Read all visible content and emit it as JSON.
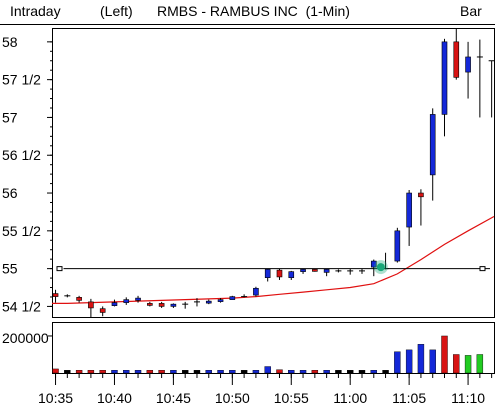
{
  "header": {
    "interval": "Intraday",
    "axis_side": "(Left)",
    "title": "RMBS - RAMBUS INC  (1-Min)",
    "chart_style": "Bar"
  },
  "colors": {
    "up": "#1428d8",
    "down": "#d81414",
    "neutral": "#000000",
    "moving_average": "#e01010",
    "volume_last": "#22cc22",
    "marker": "#18a878",
    "reference_line": "#000000"
  },
  "chart_data": [
    {
      "type": "candlestick",
      "title": "RMBS - RAMBUS INC  (1-Min)",
      "price_axis": {
        "ticks": [
          54.5,
          55,
          55.5,
          56,
          56.5,
          57,
          57.5,
          58
        ],
        "tick_labels": [
          "54 1/2",
          "55",
          "55 1/2",
          "56",
          "56 1/2",
          "57",
          "57 1/2",
          "58"
        ],
        "range": [
          54.36,
          58.17
        ]
      },
      "time_axis": {
        "tick_labels": [
          "10:35",
          "10:40",
          "10:45",
          "10:50",
          "10:55",
          "11:00",
          "11:05",
          "11:10"
        ],
        "tick_minutes": [
          635,
          640,
          645,
          650,
          655,
          660,
          665,
          670
        ],
        "range_minutes": [
          634.7,
          672.2
        ]
      },
      "reference_line": 55.0,
      "marker_point": {
        "t": 662.6,
        "price": 55.02
      },
      "candles": [
        {
          "t": 635,
          "o": 54.67,
          "h": 54.72,
          "l": 54.55,
          "c": 54.63,
          "dir": "down"
        },
        {
          "t": 636,
          "o": 54.64,
          "h": 54.66,
          "l": 54.62,
          "c": 54.64,
          "dir": "flat"
        },
        {
          "t": 637,
          "o": 54.62,
          "h": 54.64,
          "l": 54.55,
          "c": 54.58,
          "dir": "down"
        },
        {
          "t": 638,
          "o": 54.56,
          "h": 54.6,
          "l": 54.36,
          "c": 54.48,
          "dir": "down"
        },
        {
          "t": 639,
          "o": 54.47,
          "h": 54.5,
          "l": 54.37,
          "c": 54.42,
          "dir": "down"
        },
        {
          "t": 640,
          "o": 54.51,
          "h": 54.59,
          "l": 54.5,
          "c": 54.55,
          "dir": "up"
        },
        {
          "t": 641,
          "o": 54.55,
          "h": 54.62,
          "l": 54.52,
          "c": 54.59,
          "dir": "up"
        },
        {
          "t": 642,
          "o": 54.58,
          "h": 54.64,
          "l": 54.55,
          "c": 54.61,
          "dir": "up"
        },
        {
          "t": 643,
          "o": 54.54,
          "h": 54.56,
          "l": 54.5,
          "c": 54.52,
          "dir": "down"
        },
        {
          "t": 644,
          "o": 54.54,
          "h": 54.56,
          "l": 54.48,
          "c": 54.5,
          "dir": "down"
        },
        {
          "t": 645,
          "o": 54.5,
          "h": 54.54,
          "l": 54.48,
          "c": 54.53,
          "dir": "up"
        },
        {
          "t": 646,
          "o": 54.53,
          "h": 54.56,
          "l": 54.47,
          "c": 54.53,
          "dir": "flat"
        },
        {
          "t": 647,
          "o": 54.56,
          "h": 54.61,
          "l": 54.5,
          "c": 54.56,
          "dir": "flat"
        },
        {
          "t": 648,
          "o": 54.55,
          "h": 54.59,
          "l": 54.53,
          "c": 54.57,
          "dir": "up"
        },
        {
          "t": 649,
          "o": 54.57,
          "h": 54.61,
          "l": 54.55,
          "c": 54.59,
          "dir": "up"
        },
        {
          "t": 650,
          "o": 54.59,
          "h": 54.64,
          "l": 54.59,
          "c": 54.63,
          "dir": "up"
        },
        {
          "t": 651,
          "o": 54.63,
          "h": 54.66,
          "l": 54.62,
          "c": 54.63,
          "dir": "flat"
        },
        {
          "t": 652,
          "o": 54.65,
          "h": 54.76,
          "l": 54.63,
          "c": 54.74,
          "dir": "up"
        },
        {
          "t": 653,
          "o": 54.88,
          "h": 55.0,
          "l": 54.83,
          "c": 54.99,
          "dir": "up"
        },
        {
          "t": 654,
          "o": 54.98,
          "h": 55.0,
          "l": 54.85,
          "c": 54.89,
          "dir": "down"
        },
        {
          "t": 655,
          "o": 54.88,
          "h": 54.97,
          "l": 54.85,
          "c": 54.96,
          "dir": "up"
        },
        {
          "t": 656,
          "o": 54.96,
          "h": 55.0,
          "l": 54.93,
          "c": 54.99,
          "dir": "up"
        },
        {
          "t": 657,
          "o": 54.99,
          "h": 55.0,
          "l": 54.96,
          "c": 54.97,
          "dir": "down"
        },
        {
          "t": 658,
          "o": 54.95,
          "h": 55.0,
          "l": 54.9,
          "c": 54.99,
          "dir": "up"
        },
        {
          "t": 659,
          "o": 54.97,
          "h": 54.99,
          "l": 54.95,
          "c": 54.97,
          "dir": "flat"
        },
        {
          "t": 660,
          "o": 54.97,
          "h": 55.0,
          "l": 54.92,
          "c": 54.97,
          "dir": "flat"
        },
        {
          "t": 661,
          "o": 54.97,
          "h": 55.0,
          "l": 54.93,
          "c": 54.97,
          "dir": "flat"
        },
        {
          "t": 662,
          "o": 55.02,
          "h": 55.12,
          "l": 54.9,
          "c": 55.1,
          "dir": "up"
        },
        {
          "t": 663,
          "o": 55.0,
          "h": 55.21,
          "l": 54.99,
          "c": 55.0,
          "dir": "flat"
        },
        {
          "t": 664,
          "o": 55.1,
          "h": 55.54,
          "l": 55.08,
          "c": 55.5,
          "dir": "up"
        },
        {
          "t": 665,
          "o": 55.55,
          "h": 56.04,
          "l": 55.3,
          "c": 56.0,
          "dir": "up"
        },
        {
          "t": 666,
          "o": 56.0,
          "h": 56.05,
          "l": 55.57,
          "c": 55.95,
          "dir": "down"
        },
        {
          "t": 667,
          "o": 56.24,
          "h": 57.12,
          "l": 55.9,
          "c": 57.04,
          "dir": "up"
        },
        {
          "t": 668,
          "o": 57.04,
          "h": 58.04,
          "l": 56.75,
          "c": 58.0,
          "dir": "up"
        },
        {
          "t": 669,
          "o": 58.0,
          "h": 58.17,
          "l": 57.5,
          "c": 57.53,
          "dir": "down"
        },
        {
          "t": 670,
          "o": 57.6,
          "h": 58.0,
          "l": 57.25,
          "c": 57.8,
          "dir": "up"
        },
        {
          "t": 671,
          "o": 57.8,
          "h": 58.03,
          "l": 57.0,
          "c": 57.8,
          "dir": "flat"
        },
        {
          "t": 672,
          "o": 57.75,
          "h": 57.75,
          "l": 57.0,
          "c": 57.75,
          "dir": "flat"
        }
      ],
      "moving_average": [
        [
          634.7,
          54.54
        ],
        [
          636,
          54.54
        ],
        [
          638,
          54.55
        ],
        [
          640,
          54.56
        ],
        [
          642,
          54.57
        ],
        [
          644,
          54.58
        ],
        [
          646,
          54.59
        ],
        [
          648,
          54.6
        ],
        [
          650,
          54.61
        ],
        [
          652,
          54.63
        ],
        [
          654,
          54.66
        ],
        [
          656,
          54.69
        ],
        [
          658,
          54.72
        ],
        [
          660,
          54.75
        ],
        [
          662,
          54.8
        ],
        [
          664,
          54.93
        ],
        [
          666,
          55.12
        ],
        [
          668,
          55.32
        ],
        [
          670,
          55.5
        ],
        [
          672.2,
          55.69
        ]
      ]
    },
    {
      "type": "bar",
      "title": "Volume",
      "y_ticks": [
        200000
      ],
      "y_tick_labels": [
        "200000"
      ],
      "ylim": [
        0,
        270000
      ],
      "bars": [
        {
          "t": 635,
          "v": 22000,
          "dir": "down"
        },
        {
          "t": 636,
          "v": 15000,
          "dir": "flat"
        },
        {
          "t": 637,
          "v": 15000,
          "dir": "down"
        },
        {
          "t": 638,
          "v": 15000,
          "dir": "down"
        },
        {
          "t": 639,
          "v": 15000,
          "dir": "down"
        },
        {
          "t": 640,
          "v": 15000,
          "dir": "up"
        },
        {
          "t": 641,
          "v": 15000,
          "dir": "up"
        },
        {
          "t": 642,
          "v": 15000,
          "dir": "up"
        },
        {
          "t": 643,
          "v": 15000,
          "dir": "down"
        },
        {
          "t": 644,
          "v": 15000,
          "dir": "down"
        },
        {
          "t": 645,
          "v": 15000,
          "dir": "up"
        },
        {
          "t": 646,
          "v": 15000,
          "dir": "flat"
        },
        {
          "t": 647,
          "v": 15000,
          "dir": "flat"
        },
        {
          "t": 648,
          "v": 15000,
          "dir": "up"
        },
        {
          "t": 649,
          "v": 15000,
          "dir": "up"
        },
        {
          "t": 650,
          "v": 15000,
          "dir": "up"
        },
        {
          "t": 651,
          "v": 15000,
          "dir": "flat"
        },
        {
          "t": 652,
          "v": 15000,
          "dir": "up"
        },
        {
          "t": 653,
          "v": 35000,
          "dir": "up"
        },
        {
          "t": 654,
          "v": 18000,
          "dir": "down"
        },
        {
          "t": 655,
          "v": 15000,
          "dir": "up"
        },
        {
          "t": 656,
          "v": 15000,
          "dir": "up"
        },
        {
          "t": 657,
          "v": 15000,
          "dir": "down"
        },
        {
          "t": 658,
          "v": 15000,
          "dir": "up"
        },
        {
          "t": 659,
          "v": 15000,
          "dir": "flat"
        },
        {
          "t": 660,
          "v": 15000,
          "dir": "flat"
        },
        {
          "t": 661,
          "v": 15000,
          "dir": "flat"
        },
        {
          "t": 662,
          "v": 15000,
          "dir": "up"
        },
        {
          "t": 663,
          "v": 15000,
          "dir": "flat"
        },
        {
          "t": 664,
          "v": 115000,
          "dir": "up"
        },
        {
          "t": 665,
          "v": 125000,
          "dir": "up"
        },
        {
          "t": 666,
          "v": 155000,
          "dir": "up"
        },
        {
          "t": 667,
          "v": 125000,
          "dir": "up"
        },
        {
          "t": 668,
          "v": 200000,
          "dir": "down"
        },
        {
          "t": 669,
          "v": 100000,
          "dir": "down"
        },
        {
          "t": 670,
          "v": 95000,
          "dir": "last"
        },
        {
          "t": 671,
          "v": 100000,
          "dir": "last"
        }
      ]
    }
  ]
}
